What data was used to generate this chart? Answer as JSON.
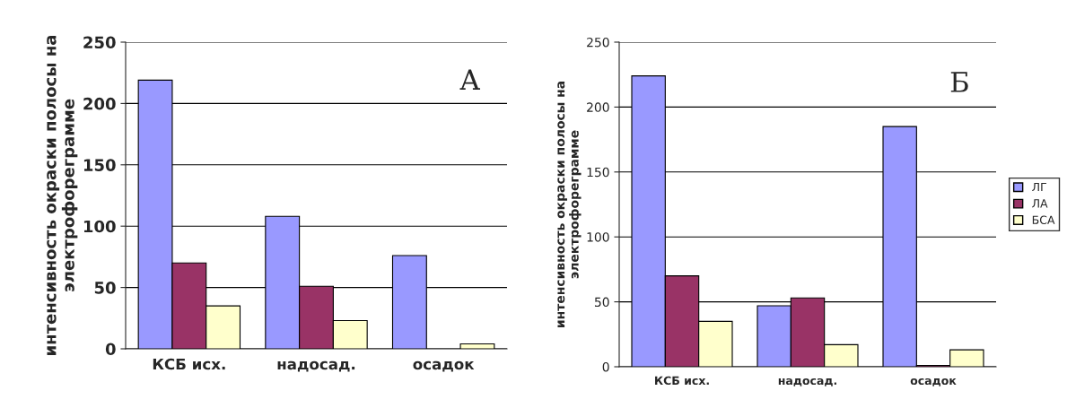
{
  "chart_data": [
    {
      "type": "bar",
      "ylabel": "интенсивность окраски полосы на\nэлектрофореграмме",
      "categories": [
        "КСБ исх.",
        "надосад.",
        "осадок"
      ],
      "series": [
        {
          "color": "#9999ff",
          "values": [
            219,
            108,
            76
          ]
        },
        {
          "color": "#993366",
          "values": [
            70,
            51,
            null
          ]
        },
        {
          "color": "#ffffcc",
          "values": [
            35,
            23,
            4
          ]
        }
      ],
      "ylim": [
        0,
        250
      ],
      "yticks": [
        0,
        50,
        100,
        150,
        200,
        250
      ],
      "grid": "y",
      "legend": false,
      "annotations": [
        "А"
      ]
    },
    {
      "type": "bar",
      "ylabel": "интенсивность окраски полосы на\nэлектрофореграмме",
      "categories": [
        "КСБ исх.",
        "надосад.",
        "осадок"
      ],
      "series": [
        {
          "name": "ЛГ",
          "color": "#9999ff",
          "values": [
            224,
            47,
            185
          ]
        },
        {
          "name": "ЛА",
          "color": "#993366",
          "values": [
            70,
            53,
            1
          ]
        },
        {
          "name": "БСА",
          "color": "#ffffcc",
          "values": [
            35,
            17,
            13
          ]
        }
      ],
      "ylim": [
        0,
        250
      ],
      "yticks": [
        0,
        50,
        100,
        150,
        200,
        250
      ],
      "grid": "y",
      "legend": "right",
      "annotations": [
        "Б"
      ]
    }
  ]
}
